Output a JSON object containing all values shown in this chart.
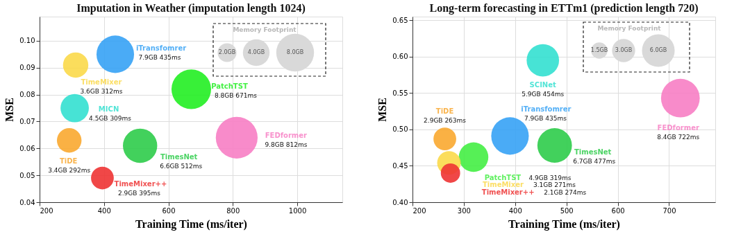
{
  "chart_data": [
    {
      "type": "bubble",
      "title": "Imputation in Weather (imputation length 1024)",
      "xlabel": "Training Time (ms/iter)",
      "ylabel": "MSE",
      "xlim": [
        200,
        1140
      ],
      "xticks": [
        200,
        400,
        600,
        800,
        {
          "value": 1000,
          "label": "1000"
        }
      ],
      "ylim": [
        0.04,
        0.109
      ],
      "yticks": [
        0.04,
        0.05,
        0.06,
        0.07,
        0.08,
        0.09,
        {
          "value": 0.1,
          "label": "0.10"
        }
      ],
      "grid": true,
      "legend_title": "Memory Footprint",
      "size_legend": [
        {
          "value": 2,
          "label": "2.0GB"
        },
        {
          "value": 4,
          "label": "4.0GB"
        },
        {
          "value": 8,
          "label": "8.0GB"
        }
      ],
      "series": [
        {
          "name": "iTransfomrer",
          "color": "#36a2f5",
          "x": [
            435
          ],
          "values": [
            0.095
          ],
          "sizes": [
            7.9
          ]
        },
        {
          "name": "TimeMixer",
          "color": "#fbd94a",
          "x": [
            312
          ],
          "values": [
            0.091
          ],
          "sizes": [
            3.6
          ]
        },
        {
          "name": "PatchTST",
          "color": "#22ee22",
          "x": [
            671
          ],
          "values": [
            0.082
          ],
          "sizes": [
            8.8
          ]
        },
        {
          "name": "MICN",
          "color": "#33e0d0",
          "x": [
            309
          ],
          "values": [
            0.075
          ],
          "sizes": [
            4.5
          ]
        },
        {
          "name": "TiDE",
          "color": "#f9a830",
          "x": [
            292
          ],
          "values": [
            0.063
          ],
          "sizes": [
            3.4
          ]
        },
        {
          "name": "TimesNet",
          "color": "#2dcc4a",
          "x": [
            512
          ],
          "values": [
            0.061
          ],
          "sizes": [
            6.6
          ]
        },
        {
          "name": "FEDformer",
          "color": "#f77ec4",
          "x": [
            812
          ],
          "values": [
            0.064
          ],
          "sizes": [
            9.8
          ]
        },
        {
          "name": "TimeMixer++",
          "color": "#ee3333",
          "x": [
            395
          ],
          "values": [
            0.049
          ],
          "sizes": [
            2.9
          ]
        }
      ],
      "annotations": [
        "7.9GB 435ms",
        "3.6GB 312ms",
        "8.8GB 671ms",
        "4.5GB 309ms",
        "3.4GB 292ms",
        "6.6GB 512ms",
        "9.8GB 812ms",
        "2.9GB 395ms"
      ]
    },
    {
      "type": "bubble",
      "title": "Long-term forecasting in ETTm1 (prediction length 720)",
      "xlabel": "Training Time (ms/iter)",
      "ylabel": "MSE",
      "xlim": [
        200,
        790
      ],
      "xticks": [
        200,
        300,
        400,
        500,
        600,
        700
      ],
      "ylim": [
        0.4,
        0.655
      ],
      "yticks": [
        {
          "value": 0.4,
          "label": "0.40"
        },
        0.45,
        {
          "value": 0.5,
          "label": "0.50"
        },
        0.55,
        {
          "value": 0.6,
          "label": "0.60"
        },
        0.65
      ],
      "grid": true,
      "legend_title": "Memory Footprint",
      "size_legend": [
        {
          "value": 1.5,
          "label": "1.5GB"
        },
        {
          "value": 3,
          "label": "3.0GB"
        },
        {
          "value": 6,
          "label": "6.0GB"
        }
      ],
      "series": [
        {
          "name": "SCINet",
          "color": "#33e0d0",
          "x": [
            454
          ],
          "values": [
            0.595
          ],
          "sizes": [
            5.9
          ]
        },
        {
          "name": "FEDformer",
          "color": "#f77ec4",
          "x": [
            722
          ],
          "values": [
            0.543
          ],
          "sizes": [
            8.4
          ]
        },
        {
          "name": "TiDE",
          "color": "#f9a830",
          "x": [
            263
          ],
          "values": [
            0.487
          ],
          "sizes": [
            2.9
          ]
        },
        {
          "name": "iTransfomrer",
          "color": "#36a2f5",
          "x": [
            390
          ],
          "values": [
            0.491
          ],
          "sizes": [
            7.9
          ]
        },
        {
          "name": "TimesNet",
          "color": "#2dcc4a",
          "x": [
            477
          ],
          "values": [
            0.478
          ],
          "sizes": [
            6.7
          ]
        },
        {
          "name": "PatchTST",
          "color": "#44ee44",
          "x": [
            319
          ],
          "values": [
            0.462
          ],
          "sizes": [
            4.9
          ]
        },
        {
          "name": "TimeMixer",
          "color": "#fbd94a",
          "x": [
            271
          ],
          "values": [
            0.454
          ],
          "sizes": [
            3.1
          ]
        },
        {
          "name": "TimeMixer++",
          "color": "#ee3333",
          "x": [
            274
          ],
          "values": [
            0.44
          ],
          "sizes": [
            2.1
          ]
        }
      ],
      "annotations": [
        "5.9GB 454ms",
        "8.4GB 722ms",
        "2.9GB 263ms",
        "7.9GB 435ms",
        "6.7GB 477ms",
        "4.9GB 319ms",
        "3.1GB 271ms",
        "2.1GB 274ms"
      ]
    }
  ]
}
